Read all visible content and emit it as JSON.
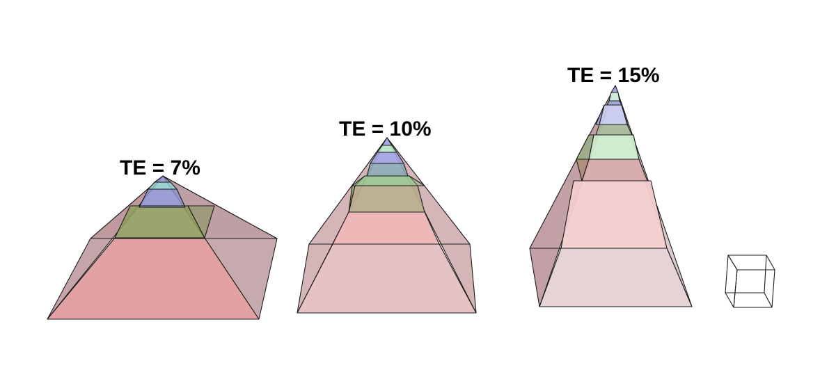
{
  "pyramids": [
    {
      "id": "te-7",
      "label": "TE = 7%"
    },
    {
      "id": "te-10",
      "label": "TE = 10%"
    },
    {
      "id": "te-15",
      "label": "TE = 15%"
    }
  ],
  "colors": {
    "red_tier": "#d9898b",
    "pink_tier": "#e8b4b4",
    "olive_tier": "#8f9e5e",
    "green_tier": "#a8dca8",
    "blue_tier": "#8c93d4",
    "cyan_tier": "#8fd3d6",
    "side_face": "#b8959a",
    "edge": "#1a1a1a"
  },
  "scale_cube_icon": "wireframe-cube-icon"
}
